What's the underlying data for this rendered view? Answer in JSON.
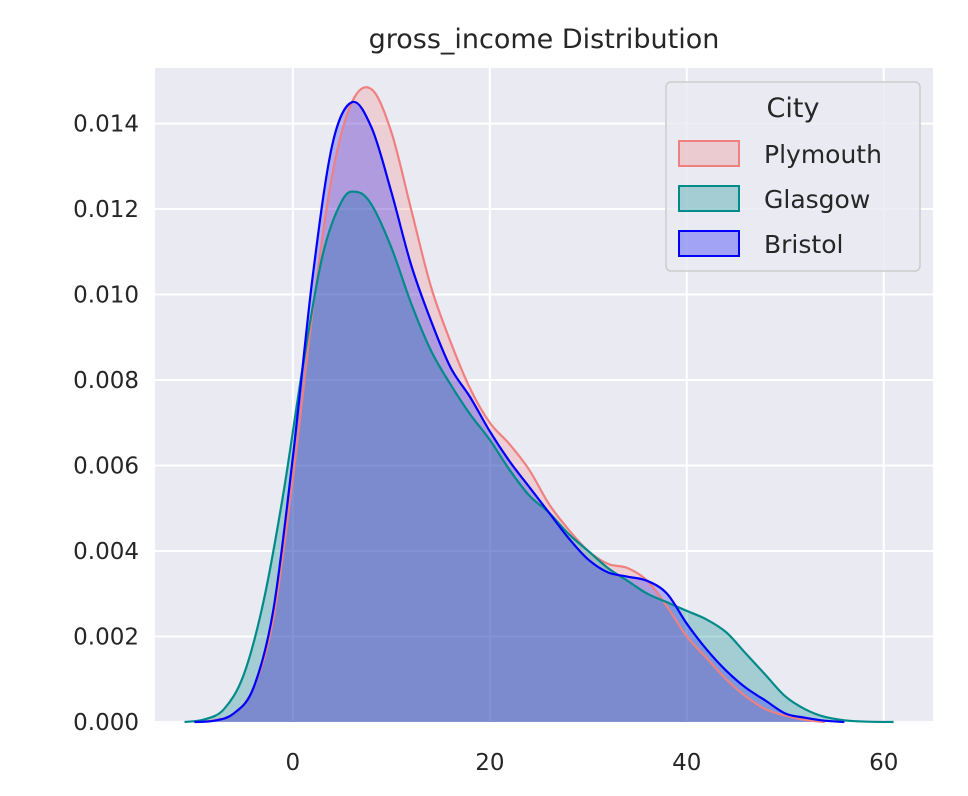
{
  "chart_data": {
    "type": "area",
    "title": "gross_income Distribution",
    "xlabel": "",
    "ylabel": "",
    "xlim": [
      -14,
      65
    ],
    "ylim": [
      0,
      0.0153
    ],
    "x_ticks": [
      0,
      20,
      40,
      60
    ],
    "y_ticks": [
      0.0,
      0.002,
      0.004,
      0.006,
      0.008,
      0.01,
      0.012,
      0.014
    ],
    "y_tick_labels": [
      "0.000",
      "0.002",
      "0.004",
      "0.006",
      "0.008",
      "0.010",
      "0.012",
      "0.014"
    ],
    "x_tick_labels": [
      "0",
      "20",
      "40",
      "60"
    ],
    "grid": true,
    "legend": {
      "title": "City",
      "placement": "top-right"
    },
    "series": [
      {
        "name": "Plymouth",
        "color": "#f08080",
        "fill_opacity": 0.25,
        "points": [
          [
            -10,
            0.0
          ],
          [
            -8,
            4e-05
          ],
          [
            -6,
            0.0002
          ],
          [
            -4,
            0.0008
          ],
          [
            -2,
            0.0024
          ],
          [
            0,
            0.0057
          ],
          [
            2,
            0.0096
          ],
          [
            4,
            0.0128
          ],
          [
            6,
            0.0145
          ],
          [
            8,
            0.0148
          ],
          [
            10,
            0.0138
          ],
          [
            12,
            0.012
          ],
          [
            14,
            0.0102
          ],
          [
            16,
            0.0089
          ],
          [
            18,
            0.0078
          ],
          [
            20,
            0.007
          ],
          [
            22,
            0.0065
          ],
          [
            24,
            0.0059
          ],
          [
            26,
            0.0051
          ],
          [
            28,
            0.0045
          ],
          [
            30,
            0.004
          ],
          [
            32,
            0.0037
          ],
          [
            34,
            0.0036
          ],
          [
            36,
            0.0033
          ],
          [
            38,
            0.0027
          ],
          [
            40,
            0.002
          ],
          [
            42,
            0.0015
          ],
          [
            44,
            0.001
          ],
          [
            46,
            0.0006
          ],
          [
            48,
            0.0003
          ],
          [
            50,
            0.00015
          ],
          [
            52,
            5e-05
          ],
          [
            54,
            0.0
          ]
        ]
      },
      {
        "name": "Glasgow",
        "color": "#008b8b",
        "fill_opacity": 0.3,
        "points": [
          [
            -11,
            0.0
          ],
          [
            -9,
            6e-05
          ],
          [
            -7,
            0.0003
          ],
          [
            -5,
            0.0011
          ],
          [
            -3,
            0.0028
          ],
          [
            -1,
            0.0053
          ],
          [
            1,
            0.0083
          ],
          [
            3,
            0.0109
          ],
          [
            5,
            0.0122
          ],
          [
            6.5,
            0.0124
          ],
          [
            8,
            0.0121
          ],
          [
            10,
            0.0111
          ],
          [
            12,
            0.0098
          ],
          [
            14,
            0.0087
          ],
          [
            16,
            0.0079
          ],
          [
            18,
            0.0072
          ],
          [
            20,
            0.0066
          ],
          [
            22,
            0.0059
          ],
          [
            24,
            0.0053
          ],
          [
            26,
            0.0049
          ],
          [
            28,
            0.0044
          ],
          [
            30,
            0.004
          ],
          [
            32,
            0.0036
          ],
          [
            34,
            0.0033
          ],
          [
            36,
            0.003
          ],
          [
            38,
            0.0028
          ],
          [
            40,
            0.0026
          ],
          [
            42,
            0.0024
          ],
          [
            44,
            0.0021
          ],
          [
            46,
            0.0016
          ],
          [
            48,
            0.0011
          ],
          [
            50,
            0.0006
          ],
          [
            52,
            0.0003
          ],
          [
            54,
            0.00012
          ],
          [
            56,
            4e-05
          ],
          [
            58,
            1e-05
          ],
          [
            61,
            0.0
          ]
        ]
      },
      {
        "name": "Bristol",
        "color": "#0000ff",
        "fill_opacity": 0.25,
        "points": [
          [
            -10,
            0.0
          ],
          [
            -8,
            3e-05
          ],
          [
            -6,
            0.0002
          ],
          [
            -4,
            0.0008
          ],
          [
            -2,
            0.0026
          ],
          [
            0,
            0.0062
          ],
          [
            2,
            0.0104
          ],
          [
            4,
            0.0135
          ],
          [
            6,
            0.0145
          ],
          [
            8,
            0.0139
          ],
          [
            10,
            0.0124
          ],
          [
            12,
            0.0107
          ],
          [
            14,
            0.0094
          ],
          [
            16,
            0.0083
          ],
          [
            18,
            0.0076
          ],
          [
            20,
            0.0068
          ],
          [
            22,
            0.0061
          ],
          [
            24,
            0.0055
          ],
          [
            26,
            0.0049
          ],
          [
            28,
            0.0043
          ],
          [
            30,
            0.0038
          ],
          [
            32,
            0.0035
          ],
          [
            34,
            0.0034
          ],
          [
            36,
            0.0033
          ],
          [
            38,
            0.003
          ],
          [
            40,
            0.0023
          ],
          [
            42,
            0.0017
          ],
          [
            44,
            0.0012
          ],
          [
            46,
            0.0008
          ],
          [
            48,
            0.0005
          ],
          [
            50,
            0.0002
          ],
          [
            52,
            0.0001
          ],
          [
            54,
            3e-05
          ],
          [
            56,
            0.0
          ]
        ]
      }
    ]
  }
}
